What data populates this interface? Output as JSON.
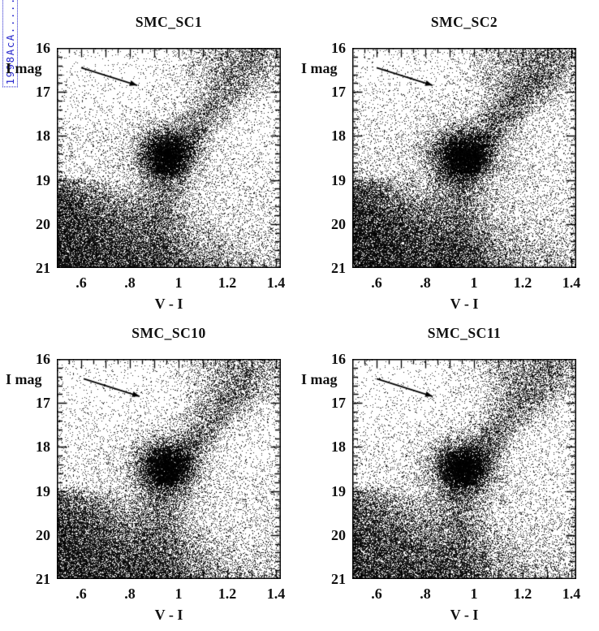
{
  "watermark": {
    "text": "1998AcA........",
    "color": "#2323cc"
  },
  "figure": {
    "point_color": "#000000",
    "axis_color": "#000000",
    "background": "#ffffff"
  },
  "chart_data": [
    {
      "type": "scatter",
      "title": "SMC_SC1",
      "xlabel": "V - I",
      "ylabel": "I mag",
      "xlim": [
        0.5,
        1.42
      ],
      "ylim": [
        16,
        21
      ],
      "y_axis_inverted": true,
      "grid": false,
      "x_ticks": [
        0.6,
        0.8,
        1.0,
        1.2,
        1.4
      ],
      "x_tick_labels": [
        ".6",
        ".8",
        "1",
        "1.2",
        "1.4"
      ],
      "x_minor_step": 0.05,
      "x_major_step": 0.1,
      "y_ticks": [
        16,
        17,
        18,
        19,
        20,
        21
      ],
      "y_tick_labels": [
        "16",
        "17",
        "18",
        "19",
        "20",
        "21"
      ],
      "y_minor_step": 0.2,
      "reddening_vector": {
        "x1": 0.6,
        "y1": 16.45,
        "x2": 0.83,
        "y2": 16.85
      },
      "red_clump": {
        "v_i": 0.95,
        "i_mag": 18.42
      },
      "seed": 101,
      "populations": {
        "background_uniform": {
          "n": 2800
        },
        "faint_field": {
          "n": 5600
        },
        "main_sequence_wedge": {
          "n": 16000,
          "y_top": 18.9,
          "y_bottom": 21.0
        },
        "subgiant_plume": {
          "n": 3200,
          "x_center": 0.93,
          "x_sigma": 0.05,
          "y_min": 18.7,
          "y_max": 21.0
        },
        "red_clump": {
          "n": 6500,
          "x_center": 0.952,
          "x_sigma": 0.055,
          "y_center": 18.42,
          "y_sigma": 0.27
        },
        "clump_halo": {
          "n": 2200,
          "x_center": 0.95,
          "x_sigma": 0.11,
          "y_center": 18.45,
          "y_sigma": 0.55
        },
        "rgb_branch": {
          "n": 4200,
          "y_min": 16.0,
          "y_max": 18.85,
          "x_base": 0.95,
          "x_span": 0.4
        },
        "rgb_tip_cloud": {
          "n": 2600,
          "x_center": 1.22,
          "x_sigma": 0.13,
          "y_center": 16.35,
          "y_sigma": 0.55
        }
      }
    },
    {
      "type": "scatter",
      "title": "SMC_SC2",
      "xlabel": "V - I",
      "ylabel": "I mag",
      "xlim": [
        0.5,
        1.42
      ],
      "ylim": [
        16,
        21
      ],
      "y_axis_inverted": true,
      "grid": false,
      "x_ticks": [
        0.6,
        0.8,
        1.0,
        1.2,
        1.4
      ],
      "x_tick_labels": [
        ".6",
        ".8",
        "1",
        "1.2",
        "1.4"
      ],
      "x_minor_step": 0.05,
      "x_major_step": 0.1,
      "y_ticks": [
        16,
        17,
        18,
        19,
        20,
        21
      ],
      "y_tick_labels": [
        "16",
        "17",
        "18",
        "19",
        "20",
        "21"
      ],
      "y_minor_step": 0.2,
      "reddening_vector": {
        "x1": 0.6,
        "y1": 16.45,
        "x2": 0.83,
        "y2": 16.85
      },
      "red_clump": {
        "v_i": 0.95,
        "i_mag": 18.45
      },
      "seed": 202,
      "populations": {
        "background_uniform": {
          "n": 3200
        },
        "faint_field": {
          "n": 7000
        },
        "main_sequence_wedge": {
          "n": 17500,
          "y_top": 18.9,
          "y_bottom": 21.0
        },
        "subgiant_plume": {
          "n": 3800,
          "x_center": 0.94,
          "x_sigma": 0.055,
          "y_min": 18.7,
          "y_max": 21.0
        },
        "red_clump": {
          "n": 7500,
          "x_center": 0.955,
          "x_sigma": 0.06,
          "y_center": 18.45,
          "y_sigma": 0.28
        },
        "clump_halo": {
          "n": 2600,
          "x_center": 0.95,
          "x_sigma": 0.12,
          "y_center": 18.45,
          "y_sigma": 0.58
        },
        "rgb_branch": {
          "n": 5200,
          "y_min": 16.0,
          "y_max": 18.85,
          "x_base": 0.96,
          "x_span": 0.4
        },
        "rgb_tip_cloud": {
          "n": 3800,
          "x_center": 1.2,
          "x_sigma": 0.14,
          "y_center": 16.4,
          "y_sigma": 0.6
        }
      }
    },
    {
      "type": "scatter",
      "title": "SMC_SC10",
      "xlabel": "V - I",
      "ylabel": "I mag",
      "xlim": [
        0.5,
        1.42
      ],
      "ylim": [
        16,
        21
      ],
      "y_axis_inverted": true,
      "grid": false,
      "x_ticks": [
        0.6,
        0.8,
        1.0,
        1.2,
        1.4
      ],
      "x_tick_labels": [
        ".6",
        ".8",
        "1",
        "1.2",
        "1.4"
      ],
      "x_minor_step": 0.05,
      "x_major_step": 0.1,
      "y_ticks": [
        16,
        17,
        18,
        19,
        20,
        21
      ],
      "y_tick_labels": [
        "16",
        "17",
        "18",
        "19",
        "20",
        "21"
      ],
      "y_minor_step": 0.2,
      "reddening_vector": {
        "x1": 0.61,
        "y1": 16.45,
        "x2": 0.84,
        "y2": 16.85
      },
      "red_clump": {
        "v_i": 0.95,
        "i_mag": 18.45
      },
      "seed": 303,
      "populations": {
        "background_uniform": {
          "n": 2900
        },
        "faint_field": {
          "n": 6000
        },
        "main_sequence_wedge": {
          "n": 15500,
          "y_top": 18.9,
          "y_bottom": 21.0
        },
        "subgiant_plume": {
          "n": 3400,
          "x_center": 0.93,
          "x_sigma": 0.052,
          "y_min": 18.7,
          "y_max": 21.0
        },
        "red_clump": {
          "n": 6800,
          "x_center": 0.95,
          "x_sigma": 0.057,
          "y_center": 18.45,
          "y_sigma": 0.27
        },
        "clump_halo": {
          "n": 2300,
          "x_center": 0.95,
          "x_sigma": 0.11,
          "y_center": 18.5,
          "y_sigma": 0.55
        },
        "rgb_branch": {
          "n": 4400,
          "y_min": 16.0,
          "y_max": 18.85,
          "x_base": 0.95,
          "x_span": 0.4
        },
        "rgb_tip_cloud": {
          "n": 2800,
          "x_center": 1.22,
          "x_sigma": 0.13,
          "y_center": 16.35,
          "y_sigma": 0.55
        }
      }
    },
    {
      "type": "scatter",
      "title": "SMC_SC11",
      "xlabel": "V - I",
      "ylabel": "I mag",
      "xlim": [
        0.5,
        1.42
      ],
      "ylim": [
        16,
        21
      ],
      "y_axis_inverted": true,
      "grid": false,
      "x_ticks": [
        0.6,
        0.8,
        1.0,
        1.2,
        1.4
      ],
      "x_tick_labels": [
        ".6",
        ".8",
        "1",
        "1.2",
        "1.4"
      ],
      "x_minor_step": 0.05,
      "x_major_step": 0.1,
      "y_ticks": [
        16,
        17,
        18,
        19,
        20,
        21
      ],
      "y_tick_labels": [
        "16",
        "17",
        "18",
        "19",
        "20",
        "21"
      ],
      "y_minor_step": 0.2,
      "reddening_vector": {
        "x1": 0.6,
        "y1": 16.45,
        "x2": 0.83,
        "y2": 16.85
      },
      "red_clump": {
        "v_i": 0.95,
        "i_mag": 18.45
      },
      "seed": 404,
      "populations": {
        "background_uniform": {
          "n": 2900
        },
        "faint_field": {
          "n": 6200
        },
        "main_sequence_wedge": {
          "n": 13500,
          "y_top": 18.9,
          "y_bottom": 21.0
        },
        "subgiant_plume": {
          "n": 3600,
          "x_center": 0.94,
          "x_sigma": 0.055,
          "y_min": 18.7,
          "y_max": 21.0
        },
        "red_clump": {
          "n": 7000,
          "x_center": 0.955,
          "x_sigma": 0.057,
          "y_center": 18.45,
          "y_sigma": 0.27
        },
        "clump_halo": {
          "n": 2400,
          "x_center": 0.95,
          "x_sigma": 0.11,
          "y_center": 18.5,
          "y_sigma": 0.55
        },
        "rgb_branch": {
          "n": 4600,
          "y_min": 16.0,
          "y_max": 18.85,
          "x_base": 0.95,
          "x_span": 0.4
        },
        "rgb_tip_cloud": {
          "n": 3000,
          "x_center": 1.21,
          "x_sigma": 0.13,
          "y_center": 16.4,
          "y_sigma": 0.55
        }
      }
    }
  ]
}
